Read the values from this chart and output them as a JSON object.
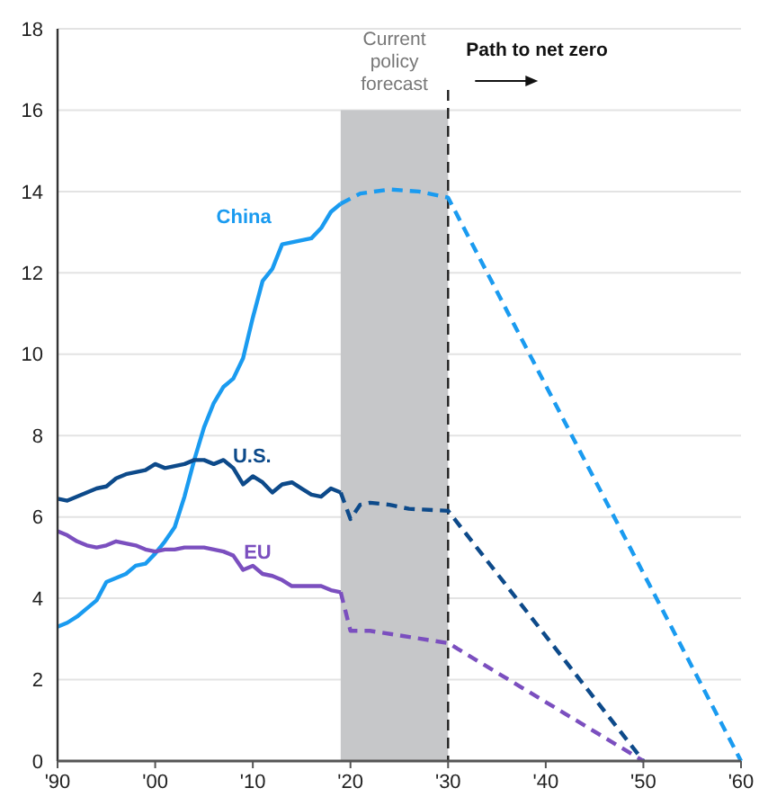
{
  "chart_data": {
    "type": "line",
    "xlim": [
      1990,
      2060
    ],
    "ylim": [
      0,
      18
    ],
    "xticks": [
      {
        "value": 1990,
        "label": "'90"
      },
      {
        "value": 2000,
        "label": "'00"
      },
      {
        "value": 2010,
        "label": "'10"
      },
      {
        "value": 2020,
        "label": "'20"
      },
      {
        "value": 2030,
        "label": "'30"
      },
      {
        "value": 2040,
        "label": "'40"
      },
      {
        "value": 2050,
        "label": "'50"
      },
      {
        "value": 2060,
        "label": "'60"
      }
    ],
    "yticks": [
      0,
      2,
      4,
      6,
      8,
      10,
      12,
      14,
      16,
      18
    ],
    "grid": "y",
    "marker": "none",
    "series": [
      {
        "name": "China",
        "color": "#1a9bf0",
        "line_style": "solid",
        "x": [
          1990,
          1991,
          1992,
          1993,
          1994,
          1995,
          1996,
          1997,
          1998,
          1999,
          2000,
          2001,
          2002,
          2003,
          2004,
          2005,
          2006,
          2007,
          2008,
          2009,
          2010,
          2011,
          2012,
          2013,
          2014,
          2015,
          2016,
          2017,
          2018,
          2019
        ],
        "values": [
          3.3,
          3.4,
          3.55,
          3.75,
          3.95,
          4.4,
          4.5,
          4.6,
          4.8,
          4.85,
          5.1,
          5.4,
          5.75,
          6.5,
          7.4,
          8.2,
          8.8,
          9.2,
          9.4,
          9.9,
          10.9,
          11.8,
          12.1,
          12.7,
          12.75,
          12.8,
          12.85,
          13.1,
          13.5,
          13.7
        ]
      },
      {
        "name": "U.S.",
        "color": "#0d4a8a",
        "line_style": "solid",
        "x": [
          1990,
          1991,
          1992,
          1993,
          1994,
          1995,
          1996,
          1997,
          1998,
          1999,
          2000,
          2001,
          2002,
          2003,
          2004,
          2005,
          2006,
          2007,
          2008,
          2009,
          2010,
          2011,
          2012,
          2013,
          2014,
          2015,
          2016,
          2017,
          2018,
          2019
        ],
        "values": [
          6.45,
          6.4,
          6.5,
          6.6,
          6.7,
          6.75,
          6.95,
          7.05,
          7.1,
          7.15,
          7.3,
          7.2,
          7.25,
          7.3,
          7.4,
          7.4,
          7.3,
          7.4,
          7.2,
          6.8,
          7.0,
          6.85,
          6.6,
          6.8,
          6.85,
          6.7,
          6.55,
          6.5,
          6.7,
          6.6
        ]
      },
      {
        "name": "EU",
        "color": "#7b4fbf",
        "line_style": "solid",
        "x": [
          1990,
          1991,
          1992,
          1993,
          1994,
          1995,
          1996,
          1997,
          1998,
          1999,
          2000,
          2001,
          2002,
          2003,
          2004,
          2005,
          2006,
          2007,
          2008,
          2009,
          2010,
          2011,
          2012,
          2013,
          2014,
          2015,
          2016,
          2017,
          2018,
          2019
        ],
        "values": [
          5.65,
          5.55,
          5.4,
          5.3,
          5.25,
          5.3,
          5.4,
          5.35,
          5.3,
          5.2,
          5.15,
          5.2,
          5.2,
          5.25,
          5.25,
          5.25,
          5.2,
          5.15,
          5.05,
          4.7,
          4.8,
          4.6,
          4.55,
          4.45,
          4.3,
          4.3,
          4.3,
          4.3,
          4.2,
          4.15
        ]
      },
      {
        "color": "#1a9bf0",
        "line_style": "dashed",
        "x": [
          2019,
          2021,
          2024,
          2027,
          2030,
          2060
        ],
        "values": [
          13.7,
          13.95,
          14.05,
          14.0,
          13.85,
          0
        ]
      },
      {
        "color": "#0d4a8a",
        "line_style": "dashed",
        "x": [
          2019,
          2020,
          2021,
          2022,
          2024,
          2026,
          2030,
          2050
        ],
        "values": [
          6.6,
          5.95,
          6.3,
          6.35,
          6.3,
          6.2,
          6.15,
          0
        ]
      },
      {
        "color": "#7b4fbf",
        "line_style": "dashed",
        "x": [
          2019,
          2020,
          2022,
          2030,
          2050
        ],
        "values": [
          4.15,
          3.2,
          3.2,
          2.9,
          0
        ]
      }
    ],
    "bands": [
      {
        "axis": "x",
        "from": 2019,
        "to": 2030,
        "label": "Current policy forecast",
        "color": "#c6c7c9"
      }
    ],
    "ref_lines": [
      {
        "axis": "x",
        "value": 2030,
        "label": "Path to net zero",
        "color": "#222222",
        "line_style": "dashed"
      }
    ]
  }
}
